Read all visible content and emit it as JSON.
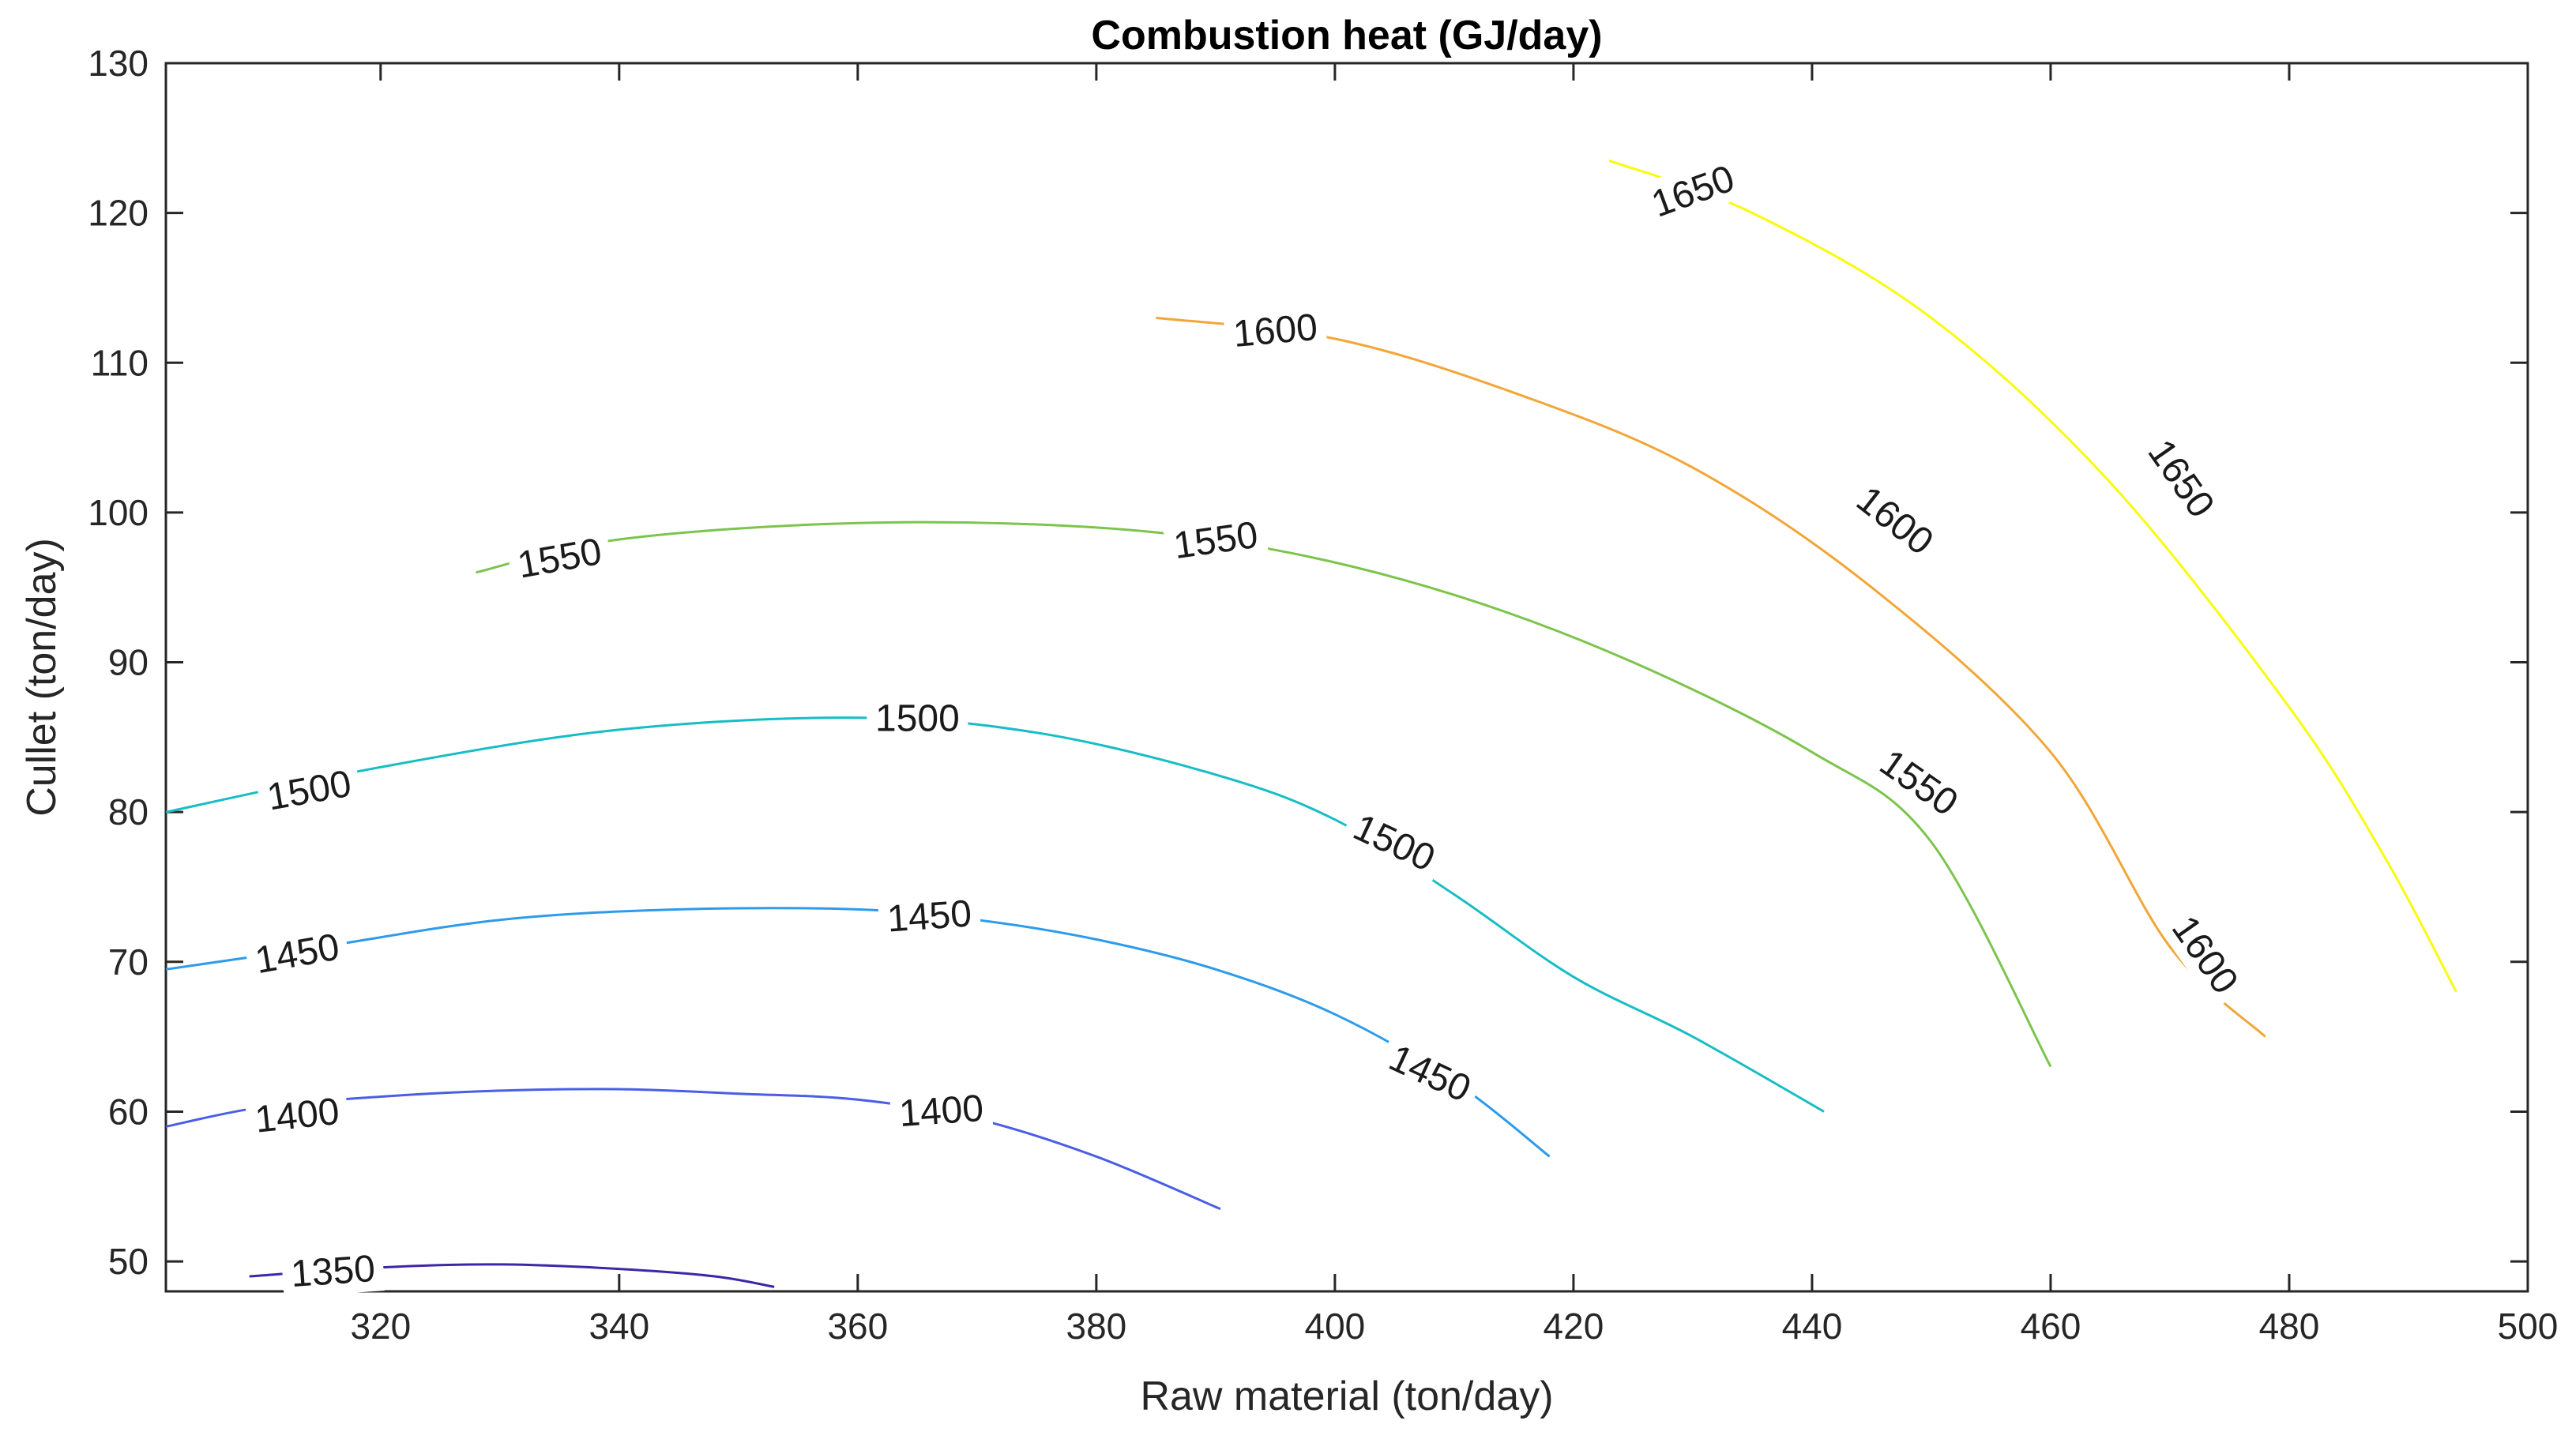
{
  "chart_data": {
    "type": "contour",
    "title": "Combustion heat (GJ/day)",
    "xlabel": "Raw material (ton/day)",
    "ylabel": "Cullet (ton/day)",
    "xlim": [
      302,
      500
    ],
    "ylim": [
      48,
      130
    ],
    "xticks": [
      "320",
      "340",
      "360",
      "380",
      "400",
      "420",
      "440",
      "460",
      "480",
      "500"
    ],
    "yticks": [
      "50",
      "60",
      "70",
      "80",
      "90",
      "100",
      "110",
      "120",
      "130"
    ],
    "grid": false,
    "contours": [
      {
        "level": "1350",
        "color": "#3e26a8",
        "points": [
          [
            309,
            49
          ],
          [
            320,
            49.6
          ],
          [
            330,
            49.8
          ],
          [
            340,
            49.5
          ],
          [
            348,
            49
          ],
          [
            353,
            48.3
          ]
        ],
        "labels": [
          [
            316,
            49.4,
            -4
          ]
        ]
      },
      {
        "level": "1400",
        "color": "#4a5ee6",
        "points": [
          [
            302,
            59
          ],
          [
            310,
            60.3
          ],
          [
            320,
            61
          ],
          [
            330,
            61.4
          ],
          [
            340,
            61.5
          ],
          [
            350,
            61.2
          ],
          [
            360,
            60.8
          ],
          [
            370,
            59.5
          ],
          [
            380,
            57
          ],
          [
            390.4,
            53.5
          ]
        ],
        "labels": [
          [
            313,
            59.8,
            -6
          ],
          [
            367,
            60.1,
            -4
          ]
        ]
      },
      {
        "level": "1450",
        "color": "#2e9bea",
        "points": [
          [
            302,
            69.5
          ],
          [
            315,
            71
          ],
          [
            330,
            72.8
          ],
          [
            345,
            73.5
          ],
          [
            360,
            73.5
          ],
          [
            370,
            72.8
          ],
          [
            380,
            71.5
          ],
          [
            390,
            69.5
          ],
          [
            400,
            66.5
          ],
          [
            410,
            62
          ],
          [
            418,
            57
          ]
        ],
        "labels": [
          [
            313,
            70.6,
            -10
          ],
          [
            366,
            73.1,
            -4
          ],
          [
            408,
            62.6,
            25
          ]
        ]
      },
      {
        "level": "1500",
        "color": "#17bdc5",
        "points": [
          [
            302,
            80
          ],
          [
            320,
            83
          ],
          [
            340,
            85.5
          ],
          [
            360,
            86.3
          ],
          [
            375,
            85.3
          ],
          [
            390,
            82.5
          ],
          [
            400,
            79.5
          ],
          [
            410,
            74.5
          ],
          [
            420,
            69
          ],
          [
            430,
            65
          ],
          [
            441,
            60
          ]
        ],
        "labels": [
          [
            314,
            81.5,
            -10
          ],
          [
            365,
            86.3,
            0
          ],
          [
            405,
            78,
            25
          ]
        ]
      },
      {
        "level": "1550",
        "color": "#7cc44d",
        "points": [
          [
            328,
            96
          ],
          [
            340,
            98.2
          ],
          [
            360,
            99.3
          ],
          [
            380,
            99
          ],
          [
            395,
            97.5
          ],
          [
            410,
            94.5
          ],
          [
            425,
            90
          ],
          [
            440,
            84
          ],
          [
            450,
            78
          ],
          [
            460,
            63
          ]
        ],
        "labels": [
          [
            335,
            97,
            -10
          ],
          [
            390,
            98.2,
            -8
          ],
          [
            449,
            82,
            35
          ]
        ]
      },
      {
        "level": "1600",
        "color": "#f2a637",
        "points": [
          [
            385,
            113
          ],
          [
            400,
            111.6
          ],
          [
            415,
            108
          ],
          [
            430,
            103
          ],
          [
            445,
            95
          ],
          [
            460,
            84
          ],
          [
            470,
            71
          ],
          [
            478,
            65
          ]
        ],
        "labels": [
          [
            395,
            112.2,
            -5
          ],
          [
            447,
            99.5,
            38
          ],
          [
            473,
            70.5,
            55
          ]
        ]
      },
      {
        "level": "1650",
        "color": "#f9fb0e",
        "points": [
          [
            423,
            123.5
          ],
          [
            435,
            120
          ],
          [
            450,
            113
          ],
          [
            465,
            102
          ],
          [
            480,
            87
          ],
          [
            488,
            77
          ],
          [
            494,
            68
          ]
        ],
        "labels": [
          [
            430,
            121.5,
            -20
          ],
          [
            471,
            102.3,
            55
          ]
        ]
      }
    ]
  }
}
